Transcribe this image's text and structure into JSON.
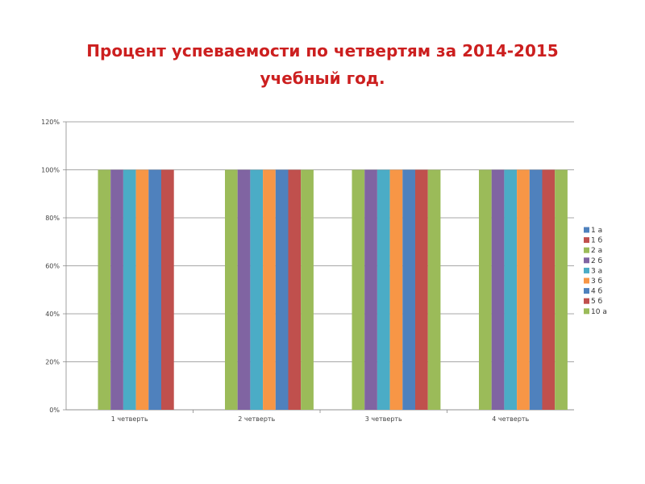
{
  "title_line1": "Процент успеваемости по четвертям  за 2014-2015",
  "title_line2": "учебный год.",
  "chart_data": {
    "type": "bar",
    "categories": [
      "1 четверть",
      "2 четверть",
      "3 четверть",
      "4 четверть"
    ],
    "ylim": [
      0,
      120
    ],
    "yticks": [
      "0%",
      "20%",
      "40%",
      "60%",
      "80%",
      "100%",
      "120%"
    ],
    "grid": true,
    "legend_position": "right",
    "series": [
      {
        "name": "1 а",
        "color": "#4f81bd",
        "values": [
          null,
          null,
          null,
          null
        ]
      },
      {
        "name": "1 б",
        "color": "#c0504d",
        "values": [
          null,
          null,
          null,
          null
        ]
      },
      {
        "name": "2 а",
        "color": "#9bbb59",
        "values": [
          100,
          100,
          100,
          100
        ]
      },
      {
        "name": "2 б",
        "color": "#8064a2",
        "values": [
          100,
          100,
          100,
          100
        ]
      },
      {
        "name": "3 а",
        "color": "#4bacc6",
        "values": [
          100,
          100,
          100,
          100
        ]
      },
      {
        "name": "3 б",
        "color": "#f79646",
        "values": [
          100,
          100,
          100,
          100
        ]
      },
      {
        "name": "4 б",
        "color": "#4f81bd",
        "values": [
          100,
          100,
          100,
          100
        ]
      },
      {
        "name": "5 б",
        "color": "#c0504d",
        "values": [
          100,
          100,
          100,
          100
        ]
      },
      {
        "name": "10 а",
        "color": "#9bbb59",
        "values": [
          null,
          100,
          100,
          100
        ]
      }
    ]
  }
}
